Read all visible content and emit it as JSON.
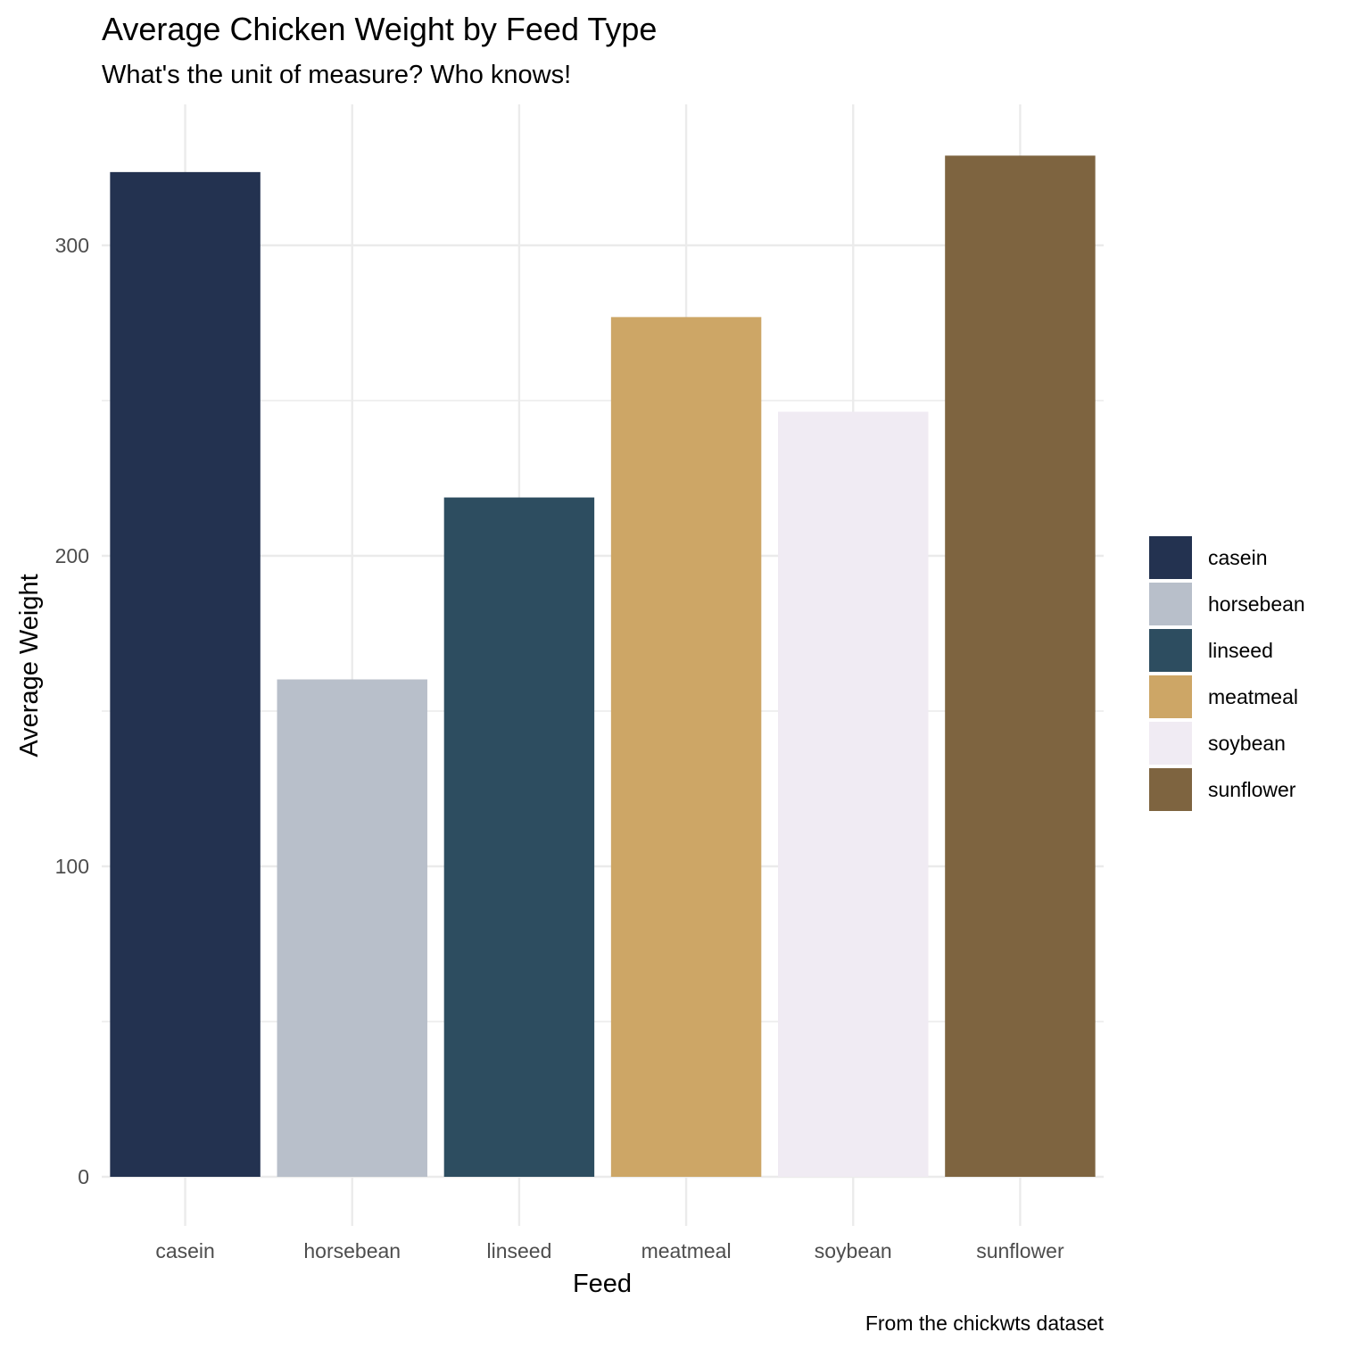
{
  "chart_data": {
    "type": "bar",
    "title": "Average Chicken Weight by Feed Type",
    "subtitle": "What's the unit of measure? Who knows!",
    "xlabel": "Feed",
    "ylabel": "Average Weight",
    "caption": "From the chickwts dataset",
    "categories": [
      "casein",
      "horsebean",
      "linseed",
      "meatmeal",
      "soybean",
      "sunflower"
    ],
    "values": [
      323.6,
      160.2,
      218.8,
      276.9,
      246.4,
      328.9
    ],
    "colors": [
      "#233250",
      "#b8bfca",
      "#2d4d60",
      "#cda666",
      "#f0ebf3",
      "#7e6440"
    ],
    "ylim": [
      0,
      345.4
    ],
    "yticks": [
      0,
      100,
      200,
      300
    ],
    "yminor": [
      50,
      150,
      250
    ],
    "grid": true,
    "legend": {
      "position": "right",
      "entries": [
        "casein",
        "horsebean",
        "linseed",
        "meatmeal",
        "soybean",
        "sunflower"
      ]
    }
  }
}
